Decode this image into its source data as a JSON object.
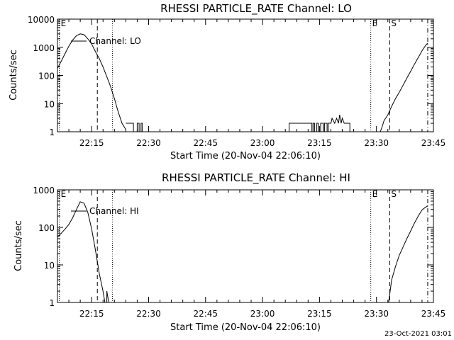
{
  "footer": {
    "timestamp": "23-Oct-2021 03:01"
  },
  "chart_data": [
    {
      "type": "line",
      "title": "RHESSI PARTICLE_RATE Channel: LO",
      "xlabel": "Start Time (20-Nov-04 22:06:10)",
      "ylabel": "Counts/sec",
      "yscale": "log",
      "xlim_min": [
        0,
        99
      ],
      "ylim": [
        1,
        10000
      ],
      "x_ticks_min": [
        9,
        24,
        39,
        54,
        69,
        84,
        99
      ],
      "x_tick_labels": [
        "22:15",
        "22:30",
        "22:45",
        "23:00",
        "23:15",
        "23:30",
        "23:45"
      ],
      "y_ticks": [
        1,
        10,
        100,
        1000,
        10000
      ],
      "y_tick_labels": [
        "1",
        "10",
        "100",
        "1000",
        "10000"
      ],
      "legend": {
        "label": "Channel: LO",
        "position": "top-left"
      },
      "markers": [
        {
          "label": "E",
          "x_min": 0.5,
          "style": "dotted"
        },
        {
          "label": "E",
          "x_min": 82.5,
          "style": "dotted"
        },
        {
          "label": "S",
          "x_min": 87.5,
          "style": "dashed"
        },
        {
          "label": "",
          "x_min": 10.5,
          "style": "dashed"
        },
        {
          "label": "",
          "x_min": 14.5,
          "style": "dotted"
        },
        {
          "label": "",
          "x_min": 97.5,
          "style": "dashdot"
        }
      ],
      "series": [
        {
          "segments": [
            [
              [
                0,
                180
              ],
              [
                1,
                320
              ],
              [
                2,
                600
              ],
              [
                3,
                1100
              ],
              [
                4,
                1800
              ],
              [
                5,
                2600
              ],
              [
                6,
                3000
              ],
              [
                7,
                2800
              ],
              [
                8,
                2000
              ],
              [
                9,
                1300
              ],
              [
                10,
                700
              ],
              [
                11,
                400
              ],
              [
                12,
                200
              ],
              [
                13,
                90
              ],
              [
                14,
                40
              ],
              [
                15,
                15
              ],
              [
                16,
                5
              ],
              [
                17,
                2
              ],
              [
                18,
                1.2
              ]
            ],
            [
              [
                18,
                2
              ],
              [
                20,
                2
              ],
              [
                20,
                1
              ],
              [
                21,
                1
              ],
              [
                21,
                2
              ],
              [
                21.5,
                2
              ],
              [
                21.5,
                1
              ],
              [
                22,
                1
              ],
              [
                22,
                2
              ],
              [
                22.3,
                2
              ],
              [
                22.3,
                1
              ]
            ],
            [
              [
                61,
                1
              ],
              [
                61,
                2
              ],
              [
                67,
                2
              ],
              [
                67,
                1
              ],
              [
                67.3,
                1
              ],
              [
                67.3,
                2
              ],
              [
                67.7,
                2
              ],
              [
                67.7,
                1
              ],
              [
                68.3,
                1
              ],
              [
                68.3,
                2
              ],
              [
                68.7,
                2
              ],
              [
                68.7,
                1
              ],
              [
                69.3,
                1
              ],
              [
                69.3,
                2
              ],
              [
                70,
                2
              ],
              [
                70,
                1
              ],
              [
                70.3,
                1
              ],
              [
                70.3,
                2
              ],
              [
                71,
                2
              ],
              [
                71,
                1
              ],
              [
                71.3,
                1
              ],
              [
                71.3,
                2
              ],
              [
                72,
                2
              ],
              [
                72.3,
                3
              ],
              [
                73,
                2
              ],
              [
                73.5,
                3
              ],
              [
                74,
                2
              ],
              [
                74.3,
                4
              ],
              [
                74.7,
                2
              ],
              [
                75,
                3
              ],
              [
                75.5,
                2
              ],
              [
                77,
                2
              ],
              [
                77,
                1
              ],
              [
                80,
                1
              ]
            ],
            [
              [
                85,
                1
              ],
              [
                85.5,
                1.5
              ],
              [
                86,
                2.5
              ],
              [
                87,
                4
              ],
              [
                88,
                8
              ],
              [
                89,
                15
              ],
              [
                90,
                25
              ],
              [
                91,
                45
              ],
              [
                92,
                80
              ],
              [
                93,
                140
              ],
              [
                94,
                250
              ],
              [
                95,
                430
              ],
              [
                96,
                750
              ],
              [
                97,
                1200
              ],
              [
                97.5,
                1400
              ]
            ]
          ]
        }
      ]
    },
    {
      "type": "line",
      "title": "RHESSI PARTICLE_RATE Channel: HI",
      "xlabel": "Start Time (20-Nov-04 22:06:10)",
      "ylabel": "Counts/sec",
      "yscale": "log",
      "xlim_min": [
        0,
        99
      ],
      "ylim": [
        1,
        1000
      ],
      "x_ticks_min": [
        9,
        24,
        39,
        54,
        69,
        84,
        99
      ],
      "x_tick_labels": [
        "22:15",
        "22:30",
        "22:45",
        "23:00",
        "23:15",
        "23:30",
        "23:45"
      ],
      "y_ticks": [
        1,
        10,
        100,
        1000
      ],
      "y_tick_labels": [
        "1",
        "10",
        "100",
        "1000"
      ],
      "legend": {
        "label": "Channel: HI",
        "position": "top-left"
      },
      "markers": [
        {
          "label": "E",
          "x_min": 0.5,
          "style": "dotted"
        },
        {
          "label": "E",
          "x_min": 82.5,
          "style": "dotted"
        },
        {
          "label": "S",
          "x_min": 87.5,
          "style": "dashed"
        },
        {
          "label": "",
          "x_min": 10.5,
          "style": "dashed"
        },
        {
          "label": "",
          "x_min": 14.5,
          "style": "dotted"
        },
        {
          "label": "",
          "x_min": 97.5,
          "style": "dashdot"
        }
      ],
      "series": [
        {
          "segments": [
            [
              [
                0,
                55
              ],
              [
                1,
                70
              ],
              [
                2,
                90
              ],
              [
                3,
                120
              ],
              [
                4,
                180
              ],
              [
                5,
                300
              ],
              [
                6,
                480
              ],
              [
                7,
                440
              ],
              [
                8,
                250
              ],
              [
                9,
                90
              ],
              [
                10,
                25
              ],
              [
                11,
                6
              ],
              [
                12,
                2
              ],
              [
                12.5,
                1
              ]
            ],
            [
              [
                13,
                1
              ],
              [
                13,
                2
              ],
              [
                13.5,
                1
              ]
            ],
            [
              [
                87.2,
                1
              ],
              [
                87.6,
                2
              ],
              [
                88,
                4
              ],
              [
                89,
                9
              ],
              [
                90,
                18
              ],
              [
                91,
                30
              ],
              [
                92,
                50
              ],
              [
                93,
                80
              ],
              [
                94,
                130
              ],
              [
                95,
                200
              ],
              [
                96,
                290
              ],
              [
                97,
                350
              ],
              [
                97.5,
                370
              ]
            ]
          ]
        }
      ]
    }
  ]
}
